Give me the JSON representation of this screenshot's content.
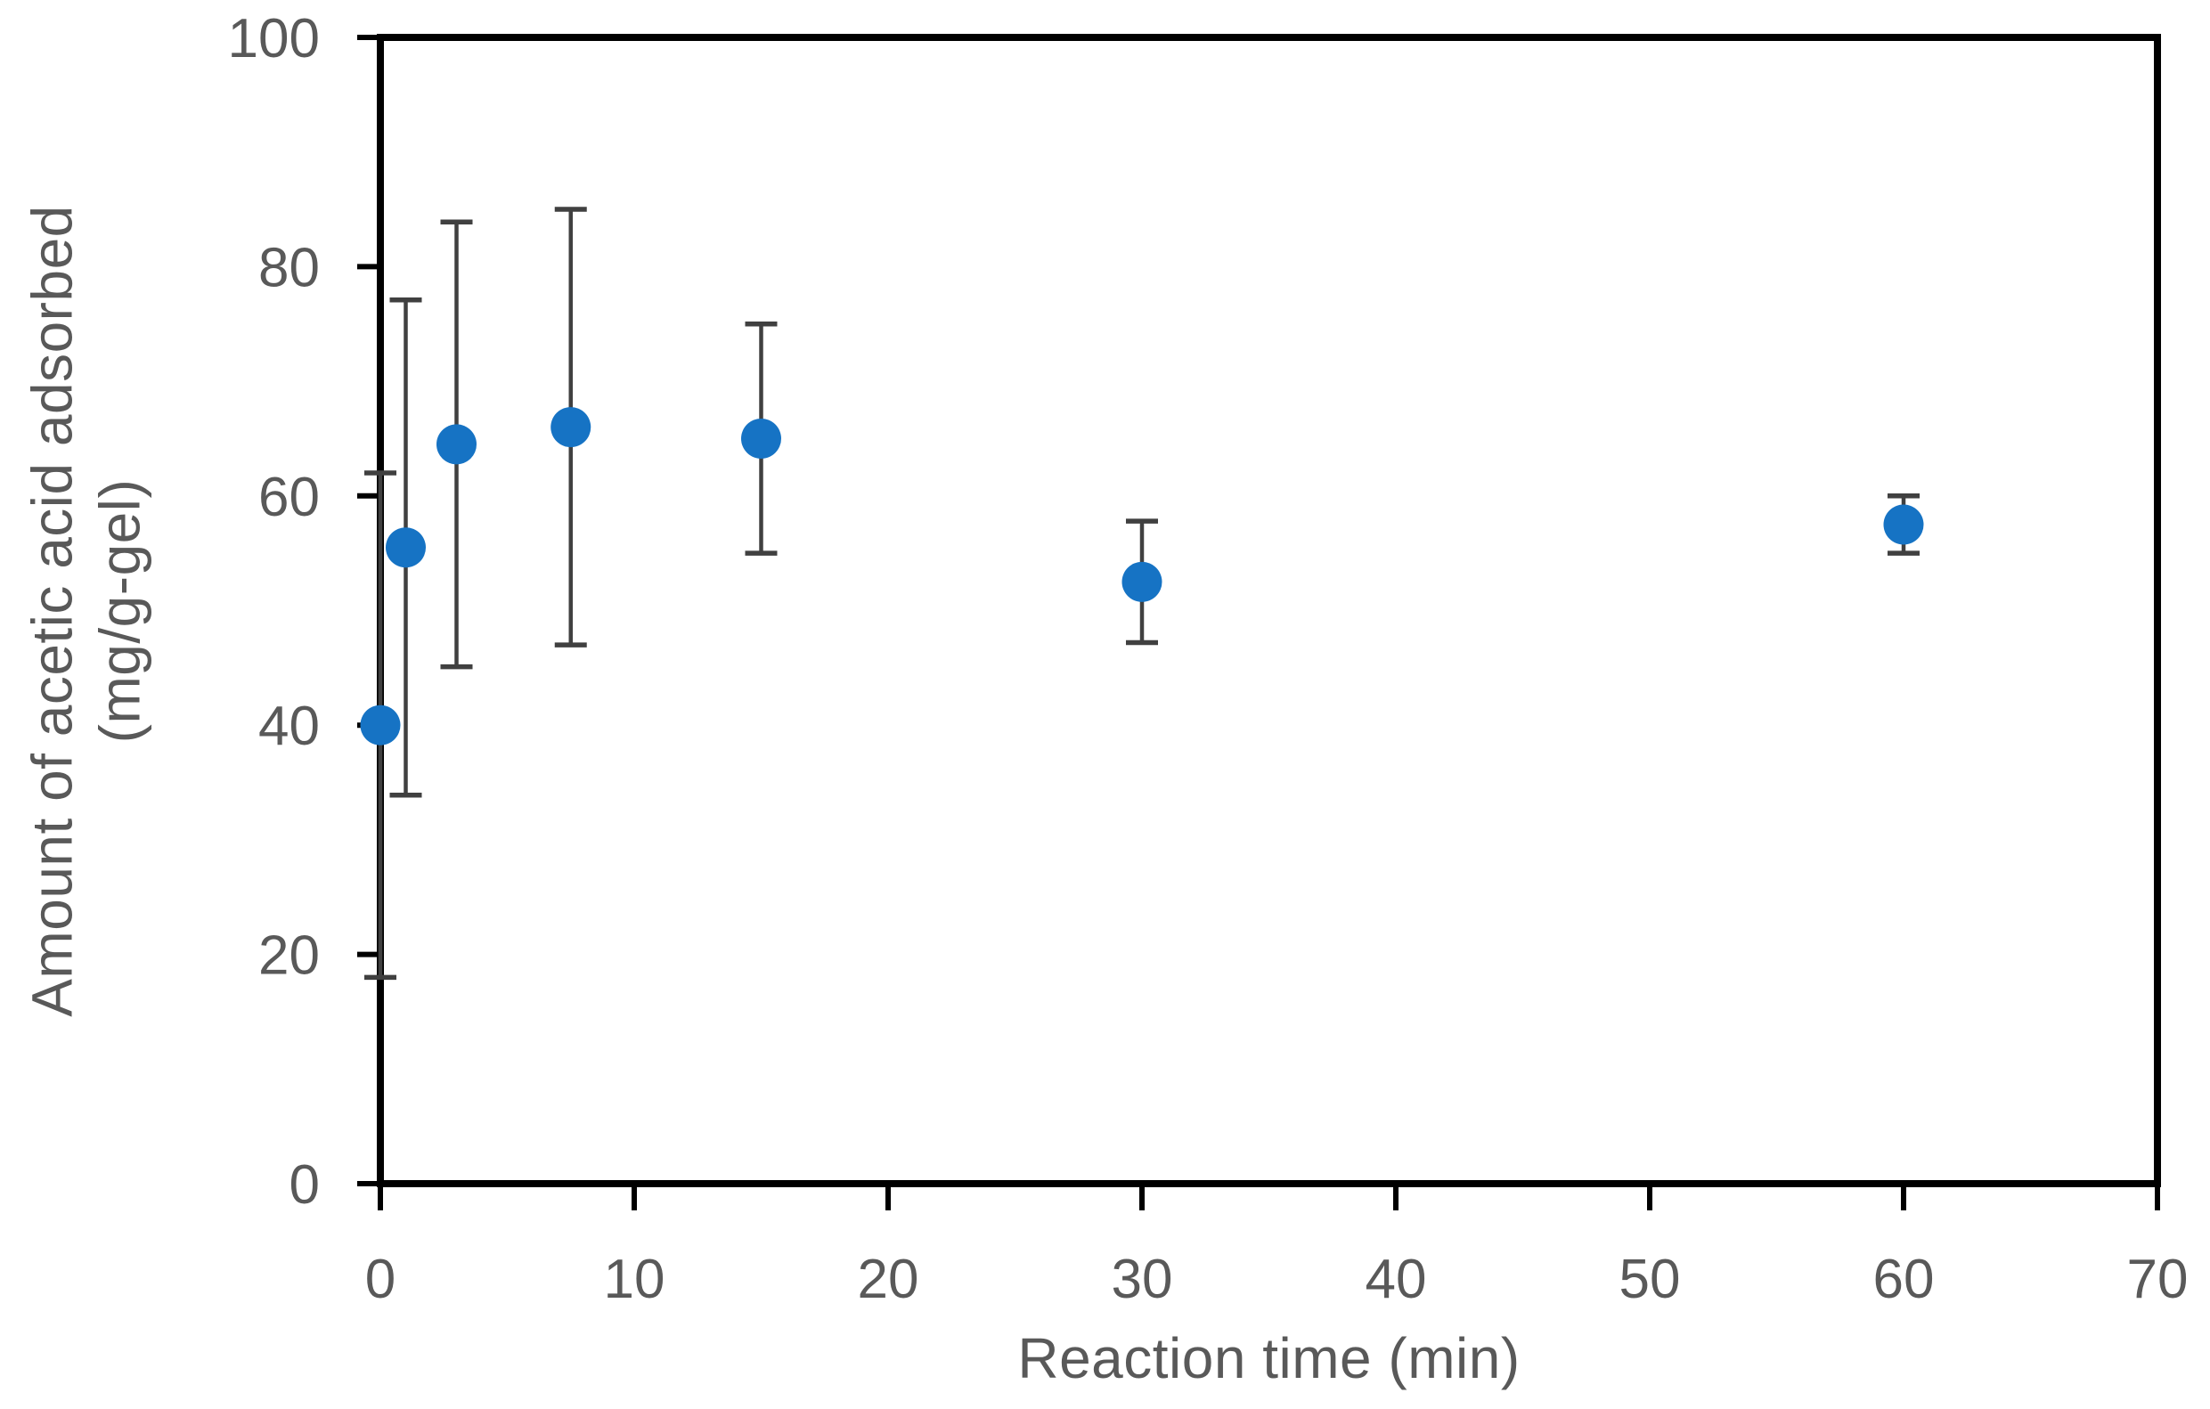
{
  "chart_data": {
    "type": "scatter",
    "title": "",
    "xlabel": "Reaction time (min)",
    "ylabel_line1": "Amount of acetic acid adsorbed",
    "ylabel_line2": "(mg/g-gel)",
    "x": [
      0,
      1,
      3,
      7.5,
      15,
      30,
      60
    ],
    "y": [
      40,
      55.5,
      64.5,
      66,
      65,
      52.5,
      57.5
    ],
    "yerr": [
      22,
      21.6,
      19.4,
      19,
      10,
      5.3,
      2.5
    ],
    "xlim": [
      0,
      70
    ],
    "ylim": [
      0,
      100
    ],
    "x_ticks": [
      0,
      10,
      20,
      30,
      40,
      50,
      60,
      70
    ],
    "y_ticks": [
      0,
      20,
      40,
      60,
      80,
      100
    ],
    "grid": false,
    "legend": null,
    "series_name": "acetic-acid-adsorption",
    "marker_shape": "circle",
    "marker_color": "#1673C4",
    "error_bar_color": "#404040",
    "axis_color": "#000000",
    "tick_label_color": "#595959",
    "axis_title_color": "#595959"
  }
}
